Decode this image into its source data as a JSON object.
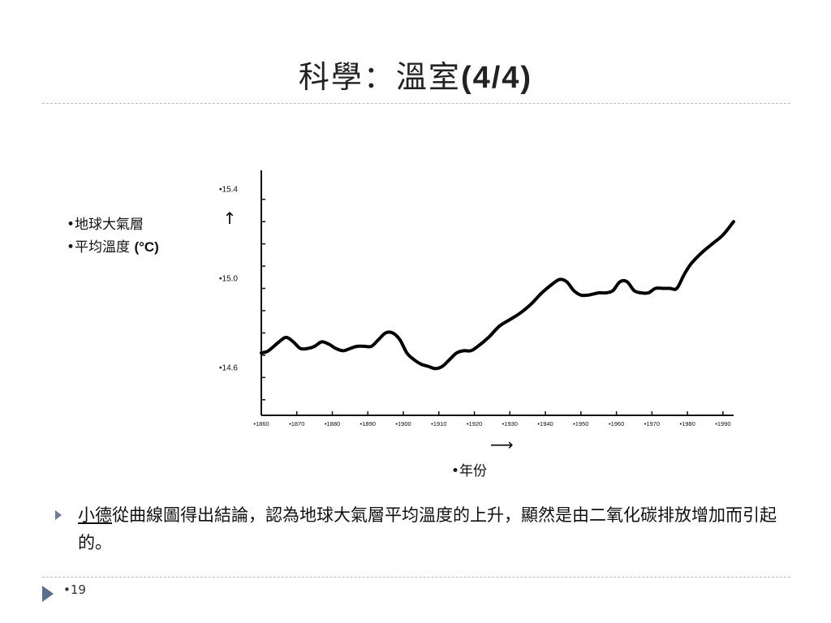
{
  "slide": {
    "title_cjk": "科學：溫室",
    "title_num": "(4/4)",
    "page_number": "•19"
  },
  "y_label": {
    "line1": "•地球大氣層",
    "line2_text": "•平均溫度 ",
    "line2_unit": "(°C)"
  },
  "x_label": {
    "arrow": "⟶",
    "text": "•年份"
  },
  "conclusion": {
    "name": "小德",
    "text": "從曲線圖得出結論，認為地球大氣層平均溫度的上升，顯然是由二氧化碳排放增加而引起的。"
  },
  "chart_data": {
    "type": "line",
    "title": "",
    "xlabel": "年份",
    "ylabel": "地球大氣層 平均溫度 (°C)",
    "y_ticks": [
      "•15.4",
      "•15.0",
      "•14.6"
    ],
    "y_tick_values": [
      15.4,
      15.0,
      14.6
    ],
    "y_arrow": "↑",
    "x_ticks": [
      "•1860",
      "•1870",
      "•1880",
      "•1890",
      "•1900",
      "•1910",
      "•1920",
      "•1930",
      "•1940",
      "•1950",
      "•1960",
      "•1970",
      "•1980",
      "•1990"
    ],
    "x_tick_values": [
      1860,
      1870,
      1880,
      1890,
      1900,
      1910,
      1920,
      1930,
      1940,
      1950,
      1960,
      1970,
      1980,
      1990
    ],
    "xlim": [
      1860,
      1993
    ],
    "ylim": [
      14.43,
      15.45
    ],
    "grid": false,
    "series": [
      {
        "x": [
          1860,
          1862,
          1865,
          1867,
          1869,
          1871,
          1873,
          1875,
          1877,
          1879,
          1881,
          1883,
          1885,
          1887,
          1889,
          1891,
          1893,
          1895,
          1897,
          1899,
          1901,
          1903,
          1905,
          1907,
          1909,
          1911,
          1913,
          1915,
          1917,
          1919,
          1921,
          1924,
          1927,
          1930,
          1933,
          1936,
          1939,
          1942,
          1944,
          1946,
          1948,
          1950,
          1952,
          1955,
          1957,
          1959,
          1961,
          1963,
          1965,
          1967,
          1969,
          1971,
          1973,
          1975,
          1977,
          1979,
          1981,
          1984,
          1987,
          1990,
          1993
        ],
        "y": [
          14.71,
          14.72,
          14.76,
          14.78,
          14.76,
          14.73,
          14.73,
          14.74,
          14.76,
          14.75,
          14.73,
          14.72,
          14.73,
          14.74,
          14.74,
          14.74,
          14.77,
          14.8,
          14.8,
          14.77,
          14.71,
          14.68,
          14.66,
          14.65,
          14.64,
          14.65,
          14.68,
          14.71,
          14.72,
          14.72,
          14.74,
          14.78,
          14.83,
          14.86,
          14.89,
          14.93,
          14.98,
          15.02,
          15.04,
          15.03,
          14.99,
          14.97,
          14.97,
          14.98,
          14.98,
          14.99,
          15.03,
          15.03,
          14.99,
          14.98,
          14.98,
          15.0,
          15.0,
          15.0,
          15.0,
          15.06,
          15.11,
          15.16,
          15.2,
          15.24,
          15.3
        ]
      }
    ]
  }
}
